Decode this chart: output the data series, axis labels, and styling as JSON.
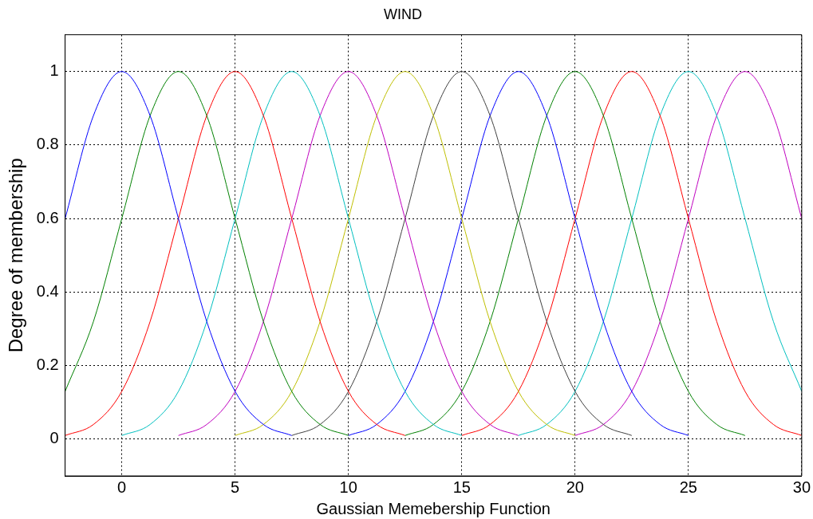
{
  "chart_data": {
    "type": "line",
    "title": "WIND",
    "xlabel": "Gaussian Memebership Function",
    "ylabel": "Degree of membership",
    "x": [
      -2.5,
      -1.25,
      0,
      1.25,
      2.5,
      3.75,
      5,
      6.25,
      7.5,
      8.75,
      10,
      11.25,
      12.5,
      13.75,
      15,
      16.25,
      17.5,
      18.75,
      20,
      21.25,
      22.5,
      23.75,
      25,
      26.25,
      27.5,
      28.75,
      30
    ],
    "series": [
      {
        "color": "#0000ff",
        "values": [
          0.6,
          0.88,
          1,
          0.88,
          0.6,
          0.32,
          0.13,
          0.04,
          0.01,
          null,
          null,
          null,
          null,
          null,
          null,
          null,
          null,
          null,
          null,
          null,
          null,
          null,
          null,
          null,
          null,
          null,
          null
        ]
      },
      {
        "color": "#008000",
        "values": [
          0.13,
          0.32,
          0.6,
          0.88,
          1,
          0.88,
          0.6,
          0.32,
          0.13,
          0.04,
          0.01,
          null,
          null,
          null,
          null,
          null,
          null,
          null,
          null,
          null,
          null,
          null,
          null,
          null,
          null,
          null,
          null
        ]
      },
      {
        "color": "#ff0000",
        "values": [
          0.01,
          0.04,
          0.13,
          0.32,
          0.6,
          0.88,
          1,
          0.88,
          0.6,
          0.32,
          0.13,
          0.04,
          0.01,
          null,
          null,
          null,
          null,
          null,
          null,
          null,
          null,
          null,
          null,
          null,
          null,
          null,
          null
        ]
      },
      {
        "color": "#00bfbf",
        "values": [
          null,
          null,
          0.01,
          0.04,
          0.13,
          0.32,
          0.6,
          0.88,
          1,
          0.88,
          0.6,
          0.32,
          0.13,
          0.04,
          0.01,
          null,
          null,
          null,
          null,
          null,
          null,
          null,
          null,
          null,
          null,
          null,
          null
        ]
      },
      {
        "color": "#bf00bf",
        "values": [
          null,
          null,
          null,
          null,
          0.01,
          0.04,
          0.13,
          0.32,
          0.6,
          0.88,
          1,
          0.88,
          0.6,
          0.32,
          0.13,
          0.04,
          0.01,
          null,
          null,
          null,
          null,
          null,
          null,
          null,
          null,
          null,
          null
        ]
      },
      {
        "color": "#bfbf00",
        "values": [
          null,
          null,
          null,
          null,
          null,
          null,
          0.01,
          0.04,
          0.13,
          0.32,
          0.6,
          0.88,
          1,
          0.88,
          0.6,
          0.32,
          0.13,
          0.04,
          0.01,
          null,
          null,
          null,
          null,
          null,
          null,
          null,
          null
        ]
      },
      {
        "color": "#404040",
        "values": [
          null,
          null,
          null,
          null,
          null,
          null,
          null,
          null,
          0.01,
          0.04,
          0.13,
          0.32,
          0.6,
          0.88,
          1,
          0.88,
          0.6,
          0.32,
          0.13,
          0.04,
          0.01,
          null,
          null,
          null,
          null,
          null,
          null
        ]
      },
      {
        "color": "#0000ff",
        "values": [
          null,
          null,
          null,
          null,
          null,
          null,
          null,
          null,
          null,
          null,
          0.01,
          0.04,
          0.13,
          0.32,
          0.6,
          0.88,
          1,
          0.88,
          0.6,
          0.32,
          0.13,
          0.04,
          0.01,
          null,
          null,
          null,
          null
        ]
      },
      {
        "color": "#008000",
        "values": [
          null,
          null,
          null,
          null,
          null,
          null,
          null,
          null,
          null,
          null,
          null,
          null,
          0.01,
          0.04,
          0.13,
          0.32,
          0.6,
          0.88,
          1,
          0.88,
          0.6,
          0.32,
          0.13,
          0.04,
          0.01,
          null,
          null
        ]
      },
      {
        "color": "#ff0000",
        "values": [
          null,
          null,
          null,
          null,
          null,
          null,
          null,
          null,
          null,
          null,
          null,
          null,
          null,
          null,
          0.01,
          0.04,
          0.13,
          0.32,
          0.6,
          0.88,
          1,
          0.88,
          0.6,
          0.32,
          0.13,
          0.04,
          0.01
        ]
      },
      {
        "color": "#00bfbf",
        "values": [
          null,
          null,
          null,
          null,
          null,
          null,
          null,
          null,
          null,
          null,
          null,
          null,
          null,
          null,
          null,
          null,
          0.01,
          0.04,
          0.13,
          0.32,
          0.6,
          0.88,
          1,
          0.88,
          0.6,
          0.32,
          0.13
        ]
      },
      {
        "color": "#bf00bf",
        "values": [
          null,
          null,
          null,
          null,
          null,
          null,
          null,
          null,
          null,
          null,
          null,
          null,
          null,
          null,
          null,
          null,
          null,
          null,
          0.01,
          0.04,
          0.13,
          0.32,
          0.6,
          0.88,
          1,
          0.88,
          0.6
        ]
      }
    ],
    "xlim": [
      -2.5,
      30
    ],
    "xticks": [
      0,
      5,
      10,
      15,
      20,
      25,
      30
    ],
    "ylim": [
      -0.1,
      1.1
    ],
    "yticks": [
      0,
      0.2,
      0.4,
      0.6,
      0.8,
      1
    ],
    "grid": true
  }
}
